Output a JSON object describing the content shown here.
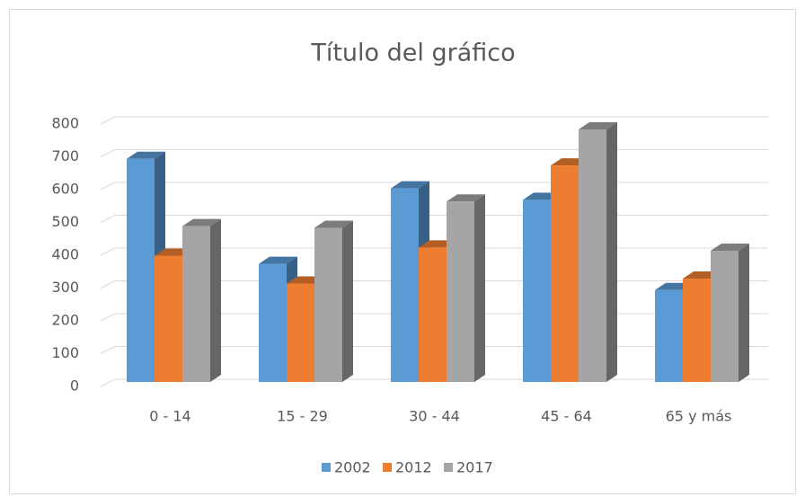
{
  "chart_data": {
    "type": "bar3d",
    "title": "Título del gráfico",
    "categories": [
      "0 - 14",
      "15 - 29",
      "30 - 44",
      "45 - 64",
      "65 y más"
    ],
    "series": [
      {
        "name": "2002",
        "color": "#5b9bd5",
        "values": [
          680,
          360,
          590,
          555,
          280
        ]
      },
      {
        "name": "2012",
        "color": "#ed7d31",
        "values": [
          385,
          300,
          410,
          660,
          315
        ]
      },
      {
        "name": "2017",
        "color": "#a5a5a5",
        "values": [
          475,
          470,
          550,
          770,
          400
        ]
      }
    ],
    "ylim": [
      0,
      800
    ],
    "yticks": [
      0,
      100,
      200,
      300,
      400,
      500,
      600,
      700,
      800
    ],
    "grid": true,
    "legend": "bottom"
  }
}
